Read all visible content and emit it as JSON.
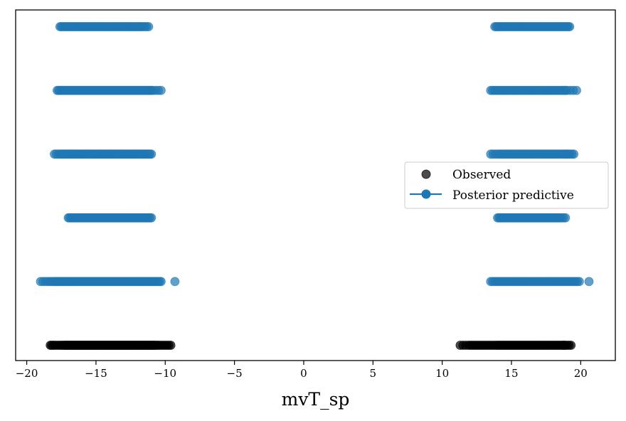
{
  "chart_data": {
    "type": "scatter",
    "title": "",
    "xlabel": "mvT_sp",
    "ylabel": "",
    "xlim": [
      -20.8,
      22.5
    ],
    "x_ticks": [
      -20,
      -15,
      -10,
      -5,
      0,
      5,
      10,
      15,
      20
    ],
    "x_tick_labels": [
      "−20",
      "−15",
      "−10",
      "−5",
      "0",
      "5",
      "10",
      "15",
      "20"
    ],
    "y_ticks_visible": false,
    "grid": false,
    "legend": {
      "position": "center-right",
      "entries": [
        {
          "label": "Observed",
          "marker": "circle",
          "line": false,
          "color": "#000000"
        },
        {
          "label": "Posterior predictive",
          "marker": "circle",
          "line": true,
          "color": "#1f77b4"
        }
      ]
    },
    "series": [
      {
        "name": "Observed",
        "color": "#000000",
        "alpha": 0.7,
        "rows": [
          {
            "level": 0,
            "x": [
              -18.3,
              -18.0,
              -17.6,
              -17.3,
              -17.1,
              -16.9,
              -16.7,
              -16.5,
              -16.3,
              -16.1,
              -15.9,
              -15.7,
              -15.5,
              -15.3,
              -15.1,
              -14.9,
              -14.7,
              -14.5,
              -14.3,
              -14.1,
              -13.9,
              -13.7,
              -13.5,
              -13.3,
              -13.1,
              -12.9,
              -12.7,
              -12.5,
              -12.3,
              -12.1,
              -11.9,
              -11.7,
              -11.5,
              -11.3,
              -11.1,
              -10.9,
              -10.7,
              -10.4,
              -10.0,
              -9.6,
              11.3,
              11.9,
              12.3,
              12.7,
              13.1,
              13.5,
              13.9,
              14.2,
              14.5,
              14.8,
              15.1,
              15.4,
              15.7,
              16.0,
              16.3,
              16.6,
              16.9,
              17.2,
              17.5,
              17.8,
              18.1,
              18.4,
              18.7,
              18.9,
              19.3
            ]
          }
        ]
      },
      {
        "name": "Posterior predictive",
        "color": "#1f77b4",
        "alpha": 0.7,
        "rows": [
          {
            "level": 1,
            "x": [
              -19.0,
              -18.5,
              -18.1,
              -17.8,
              -17.5,
              -17.2,
              -16.9,
              -16.6,
              -16.3,
              -16.0,
              -15.7,
              -15.4,
              -15.1,
              -14.8,
              -14.5,
              -14.2,
              -13.9,
              -13.6,
              -13.3,
              -13.0,
              -12.7,
              -12.4,
              -12.1,
              -11.8,
              -11.5,
              -11.2,
              -10.9,
              -10.6,
              -10.3,
              -9.3,
              13.5,
              13.9,
              14.3,
              14.7,
              15.1,
              15.5,
              15.9,
              16.3,
              16.7,
              17.1,
              17.5,
              17.9,
              18.3,
              18.7,
              19.1,
              19.5,
              19.9,
              20.6
            ]
          },
          {
            "level": 2,
            "x": [
              -17.0,
              -16.7,
              -16.4,
              -16.1,
              -15.8,
              -15.5,
              -15.2,
              -14.9,
              -14.6,
              -14.3,
              -14.0,
              -13.7,
              -13.4,
              -13.1,
              -12.8,
              -12.5,
              -12.2,
              -11.9,
              -11.6,
              -11.3,
              -11.0,
              14.0,
              14.3,
              14.6,
              14.9,
              15.2,
              15.5,
              15.8,
              16.1,
              16.4,
              16.7,
              17.0,
              17.3,
              17.6,
              17.9,
              18.2,
              18.5,
              18.9
            ]
          },
          {
            "level": 3,
            "x": [
              -18.0,
              -17.6,
              -17.3,
              -17.0,
              -16.7,
              -16.4,
              -16.1,
              -15.8,
              -15.5,
              -15.2,
              -14.9,
              -14.6,
              -14.3,
              -14.0,
              -13.7,
              -13.4,
              -13.1,
              -12.8,
              -12.5,
              -12.2,
              -11.9,
              -11.6,
              -11.3,
              -11.0,
              13.5,
              14.0,
              14.4,
              14.8,
              15.2,
              15.6,
              16.0,
              16.4,
              16.8,
              17.2,
              17.6,
              18.0,
              18.4,
              18.8,
              19.1,
              19.5
            ]
          },
          {
            "level": 4,
            "x": [
              -17.8,
              -17.5,
              -17.2,
              -16.9,
              -16.6,
              -16.3,
              -16.0,
              -15.7,
              -15.4,
              -15.1,
              -14.8,
              -14.5,
              -14.2,
              -13.9,
              -13.6,
              -13.3,
              -13.0,
              -12.7,
              -12.4,
              -12.1,
              -11.8,
              -11.5,
              -11.2,
              -10.9,
              -10.3,
              13.5,
              13.9,
              14.3,
              14.7,
              15.1,
              15.5,
              15.9,
              16.3,
              16.7,
              17.1,
              17.5,
              17.9,
              18.3,
              18.7,
              19.0,
              19.7
            ]
          },
          {
            "level": 5,
            "x": [
              -17.6,
              -17.3,
              -17.0,
              -16.7,
              -16.4,
              -16.1,
              -15.8,
              -15.5,
              -15.2,
              -14.9,
              -14.6,
              -14.3,
              -14.0,
              -13.7,
              -13.4,
              -13.1,
              -12.8,
              -12.5,
              -12.2,
              -11.9,
              -11.6,
              -11.2,
              13.8,
              14.1,
              14.4,
              14.7,
              15.0,
              15.3,
              15.6,
              15.9,
              16.2,
              16.5,
              16.8,
              17.1,
              17.4,
              17.7,
              18.0,
              18.3,
              18.6,
              18.9,
              19.2
            ]
          }
        ]
      }
    ]
  }
}
